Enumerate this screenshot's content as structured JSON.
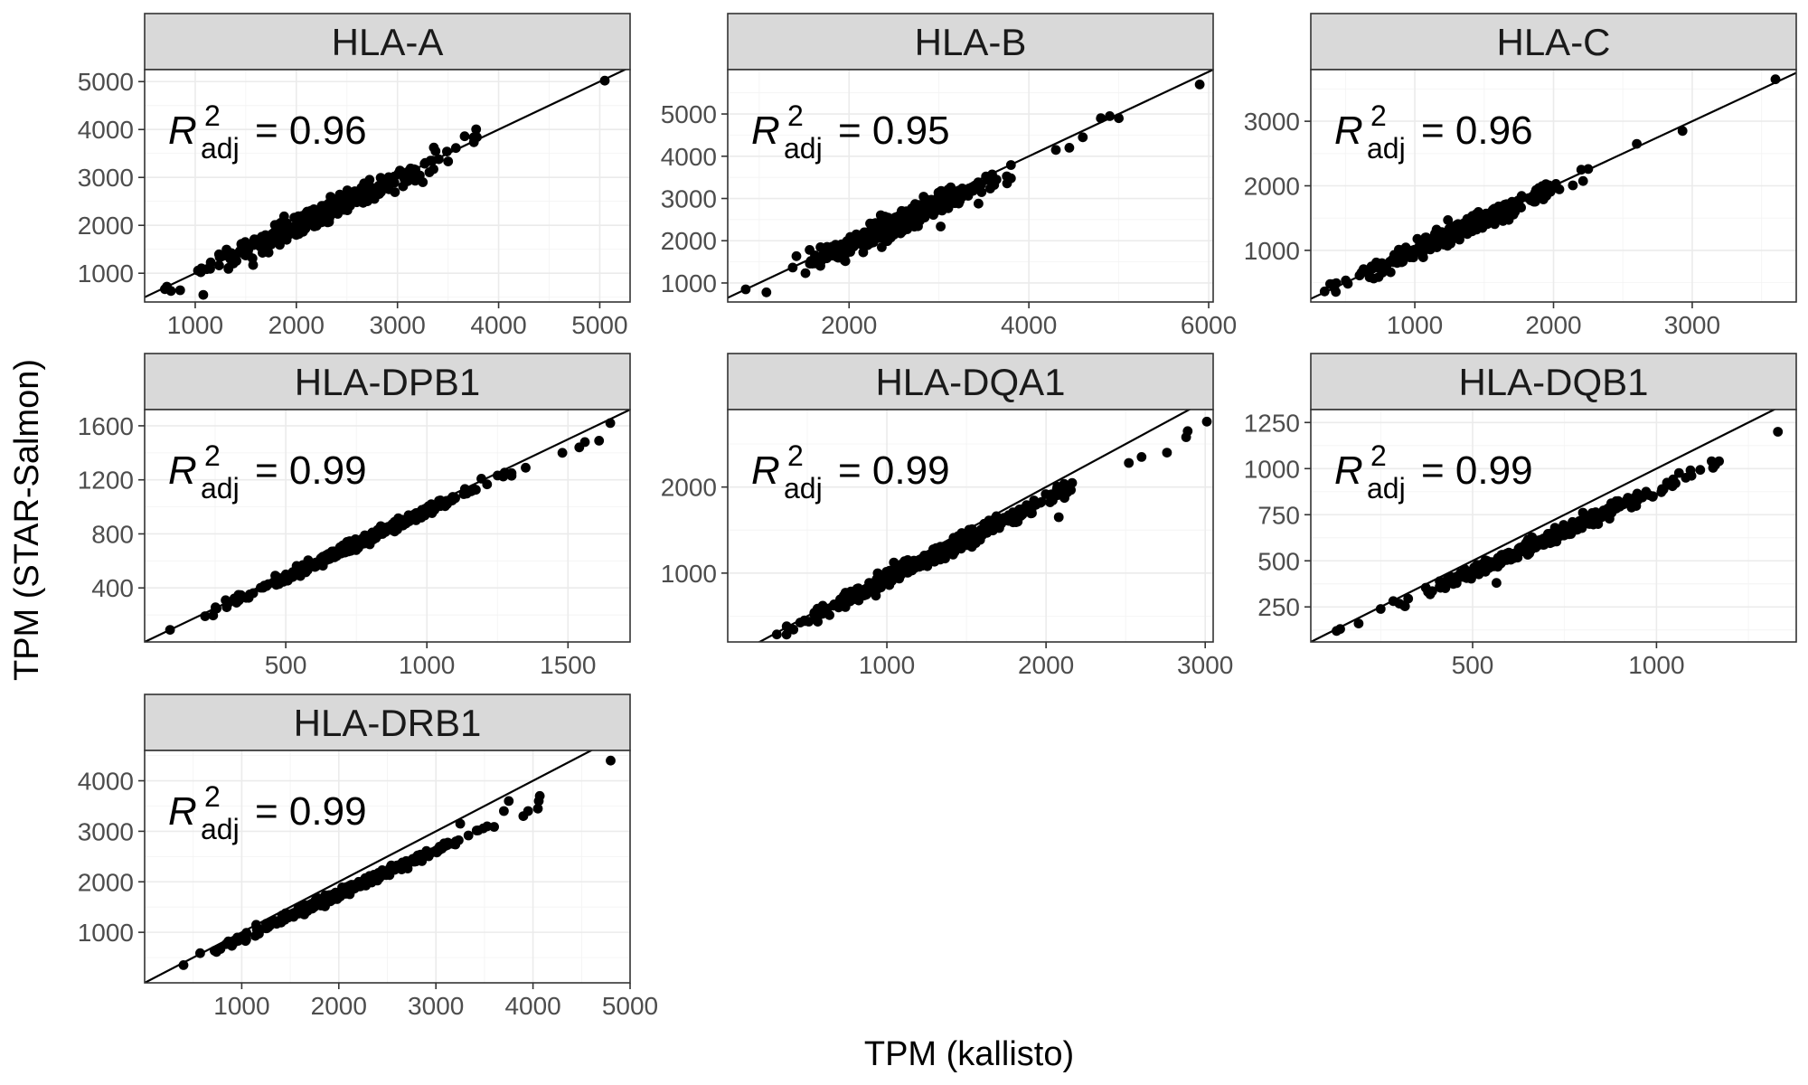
{
  "figure": {
    "xlabel": "TPM (kallisto)",
    "ylabel": "TPM (STAR-Salmon)"
  },
  "chart_data": [
    {
      "type": "scatter",
      "title": "HLA-A",
      "annotation": {
        "symbol": "R",
        "superscript": "2",
        "subscript": "adj",
        "value": "= 0.96"
      },
      "xlim": [
        500,
        5300
      ],
      "ylim": [
        400,
        5250
      ],
      "xticks": [
        1000,
        2000,
        3000,
        4000,
        5000
      ],
      "yticks": [
        1000,
        2000,
        3000,
        4000,
        5000
      ],
      "reference_line": {
        "intercept": 0,
        "slope": 1
      },
      "points": {
        "x_range": [
          700,
          3850
        ],
        "slope": 0.99,
        "intercept": 0,
        "noise": 110,
        "n": 320,
        "extras": [
          [
            1080,
            550
          ],
          [
            720,
            720
          ],
          [
            760,
            630
          ],
          [
            5050,
            5020
          ],
          [
            2300,
            2150
          ],
          [
            3250,
            2900
          ]
        ]
      }
    },
    {
      "type": "scatter",
      "title": "HLA-B",
      "annotation": {
        "symbol": "R",
        "superscript": "2",
        "subscript": "adj",
        "value": "= 0.95"
      },
      "xlim": [
        650,
        6050
      ],
      "ylim": [
        550,
        6050
      ],
      "xticks": [
        2000,
        4000,
        6000
      ],
      "yticks": [
        1000,
        2000,
        3000,
        4000,
        5000
      ],
      "reference_line": {
        "intercept": 0,
        "slope": 1
      },
      "points": {
        "x_range": [
          1300,
          3800
        ],
        "slope": 0.95,
        "intercept": 0,
        "noise": 150,
        "n": 330,
        "extras": [
          [
            850,
            850
          ],
          [
            1080,
            780
          ],
          [
            4300,
            4150
          ],
          [
            4450,
            4200
          ],
          [
            4600,
            4450
          ],
          [
            4800,
            4900
          ],
          [
            4900,
            4950
          ],
          [
            5000,
            4900
          ],
          [
            5900,
            5700
          ]
        ]
      }
    },
    {
      "type": "scatter",
      "title": "HLA-C",
      "annotation": {
        "symbol": "R",
        "superscript": "2",
        "subscript": "adj",
        "value": "= 0.96"
      },
      "xlim": [
        250,
        3750
      ],
      "ylim": [
        200,
        3800
      ],
      "xticks": [
        1000,
        2000,
        3000
      ],
      "yticks": [
        1000,
        2000,
        3000
      ],
      "reference_line": {
        "intercept": 0,
        "slope": 1
      },
      "points": {
        "x_range": [
          350,
          2250
        ],
        "slope": 0.99,
        "intercept": 0,
        "noise": 70,
        "n": 320,
        "extras": [
          [
            2600,
            2650
          ],
          [
            2930,
            2850
          ],
          [
            3600,
            3650
          ],
          [
            2200,
            2250
          ],
          [
            2250,
            2260
          ]
        ]
      }
    },
    {
      "type": "scatter",
      "title": "HLA-DPB1",
      "annotation": {
        "symbol": "R",
        "superscript": "2",
        "subscript": "adj",
        "value": "= 0.99"
      },
      "xlim": [
        0,
        1720
      ],
      "ylim": [
        0,
        1720
      ],
      "xticks": [
        500,
        1000,
        1500
      ],
      "yticks": [
        400,
        800,
        1200,
        1600
      ],
      "reference_line": {
        "intercept": 0,
        "slope": 1
      },
      "points": {
        "x_range": [
          150,
          1300
        ],
        "slope": 0.97,
        "intercept": 0,
        "noise": 20,
        "n": 320,
        "extras": [
          [
            90,
            90
          ],
          [
            1350,
            1290
          ],
          [
            1480,
            1400
          ],
          [
            1540,
            1440
          ],
          [
            1560,
            1480
          ],
          [
            1610,
            1490
          ],
          [
            1650,
            1620
          ],
          [
            1300,
            1230
          ]
        ]
      }
    },
    {
      "type": "scatter",
      "title": "HLA-DQA1",
      "annotation": {
        "symbol": "R",
        "superscript": "2",
        "subscript": "adj",
        "value": "= 0.99"
      },
      "xlim": [
        0,
        3050
      ],
      "ylim": [
        200,
        2900
      ],
      "xticks": [
        1000,
        2000,
        3000
      ],
      "yticks": [
        1000,
        2000
      ],
      "reference_line": {
        "intercept": 0,
        "slope": 1
      },
      "points": {
        "x_range": [
          300,
          2350
        ],
        "slope": 0.93,
        "intercept": 0,
        "noise": 45,
        "n": 330,
        "extras": [
          [
            2520,
            2280
          ],
          [
            2600,
            2350
          ],
          [
            2760,
            2400
          ],
          [
            2880,
            2580
          ],
          [
            2890,
            2650
          ],
          [
            3010,
            2760
          ],
          [
            2080,
            1650
          ]
        ]
      }
    },
    {
      "type": "scatter",
      "title": "HLA-DQB1",
      "annotation": {
        "symbol": "R",
        "superscript": "2",
        "subscript": "adj",
        "value": "= 0.99"
      },
      "xlim": [
        60,
        1380
      ],
      "ylim": [
        60,
        1320
      ],
      "xticks": [
        500,
        1000
      ],
      "yticks": [
        250,
        500,
        750,
        1000,
        1250
      ],
      "reference_line": {
        "intercept": 0,
        "slope": 1
      },
      "points": {
        "x_range": [
          250,
          1160
        ],
        "slope": 0.88,
        "intercept": 0,
        "noise": 18,
        "n": 320,
        "extras": [
          [
            130,
            120
          ],
          [
            140,
            130
          ],
          [
            190,
            160
          ],
          [
            565,
            380
          ],
          [
            1330,
            1200
          ],
          [
            1150,
            1040
          ],
          [
            1170,
            1040
          ]
        ]
      }
    },
    {
      "type": "scatter",
      "title": "HLA-DRB1",
      "annotation": {
        "symbol": "R",
        "superscript": "2",
        "subscript": "adj",
        "value": "= 0.99"
      },
      "xlim": [
        0,
        5000
      ],
      "ylim": [
        0,
        4600
      ],
      "xticks": [
        1000,
        2000,
        3000,
        4000,
        5000
      ],
      "yticks": [
        1000,
        2000,
        3000,
        4000
      ],
      "reference_line": {
        "intercept": 0,
        "slope": 1
      },
      "points": {
        "x_range": [
          500,
          3600
        ],
        "slope": 0.88,
        "intercept": 0,
        "noise": 45,
        "n": 320,
        "extras": [
          [
            400,
            350
          ],
          [
            3250,
            3150
          ],
          [
            3700,
            3400
          ],
          [
            3750,
            3600
          ],
          [
            3900,
            3300
          ],
          [
            3950,
            3400
          ],
          [
            4050,
            3450
          ],
          [
            4060,
            3600
          ],
          [
            4070,
            3700
          ],
          [
            4800,
            4400
          ]
        ]
      }
    }
  ]
}
